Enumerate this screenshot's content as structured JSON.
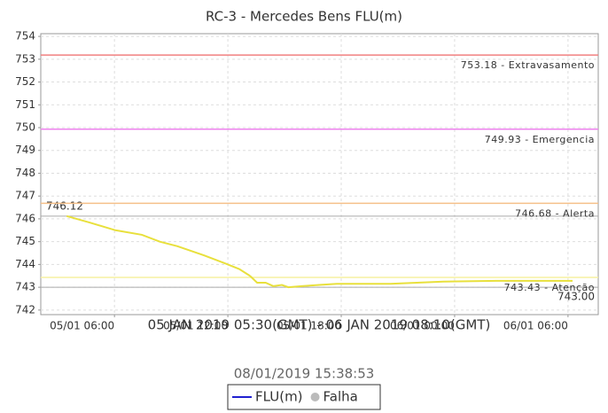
{
  "chart_data": {
    "type": "line",
    "title": "RC-3 - Mercedes Bens FLU(m)",
    "xlabel": "05 JAN 2019 05:30(GMT) - 06 JAN 2019 08:10(GMT)",
    "subtitle": "08/01/2019 15:38:53",
    "xlim": [
      2.1,
      31.6
    ],
    "xticks": [
      {
        "value": 6,
        "label": "05/01 06:00"
      },
      {
        "value": 12,
        "label": "05/01 12:00"
      },
      {
        "value": 18,
        "label": "05/01 18:00"
      },
      {
        "value": 24,
        "label": "06/01 00:00"
      },
      {
        "value": 30,
        "label": "06/01 06:00"
      }
    ],
    "ylim": [
      741.8,
      754.12
    ],
    "yticks": [
      742,
      743,
      744,
      745,
      746,
      747,
      748,
      749,
      750,
      751,
      752,
      753,
      754
    ],
    "grid": true,
    "x": [
      3.47,
      4.64,
      6.05,
      7.45,
      8.4,
      9.33,
      10.73,
      12.0,
      12.6,
      13.17,
      13.55,
      14.0,
      14.4,
      14.86,
      15.2,
      15.9,
      16.83,
      17.77,
      20.6,
      23.4,
      26.2,
      30.24
    ],
    "series": [
      {
        "name": "FLU(m)",
        "color": "#2020d0",
        "values": [
          746.12,
          745.85,
          745.5,
          745.3,
          745.0,
          744.8,
          744.4,
          744.0,
          743.8,
          743.5,
          743.2,
          743.2,
          743.05,
          743.1,
          743.0,
          743.05,
          743.1,
          743.15,
          743.15,
          743.25,
          743.28,
          743.28
        ],
        "point_colors": [
          "#e8e03c",
          "#e8e03c",
          "#e8e03c",
          "#e8e03c",
          "#e8e03c",
          "#e8e03c",
          "#e8e03c",
          "#e8e03c",
          "#e8e03c",
          "#e8e03c",
          "#2020d0",
          "#2020d0",
          "#2020d0",
          "#2020d0",
          "#2020d0",
          "#2020d0",
          "#2020d0",
          "#2020d0",
          "#2020d0",
          "#2020d0",
          "#2020d0",
          "#2020d0"
        ]
      }
    ],
    "thresholds": [
      {
        "value": 753.18,
        "label": "753.18 - Extravasamento",
        "color": "#f08080"
      },
      {
        "value": 749.93,
        "label": "749.93 - Emergencia",
        "color": "#ee82ee"
      },
      {
        "value": 746.68,
        "label": "746.68 - Alerta",
        "color": "#f5c08a"
      },
      {
        "value": 743.43,
        "label": "743.43 - Atenção",
        "color": "#f5f0a0"
      }
    ],
    "extremes": [
      {
        "value": 746.12,
        "label": "746.12",
        "side": "left"
      },
      {
        "value": 743.0,
        "label": "743.00",
        "side": "right"
      }
    ],
    "legend": [
      {
        "name": "FLU(m)",
        "color": "#2020d0"
      },
      {
        "name": "Falha",
        "color": "#bbbbbb"
      }
    ]
  }
}
